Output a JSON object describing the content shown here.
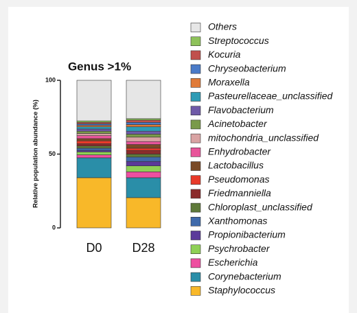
{
  "chart_data": {
    "type": "stacked_bar",
    "title": "Genus >1%",
    "y_label": "Relative population abundance (%)",
    "categories": [
      "D0",
      "D28"
    ],
    "ylim": [
      0,
      100
    ],
    "yticks": [
      0,
      50,
      100
    ],
    "series": [
      {
        "name": "Others",
        "color": "#e6e6e6",
        "values": [
          27.5,
          26
        ]
      },
      {
        "name": "Streptococcus",
        "color": "#8ec25a",
        "values": [
          1,
          1
        ]
      },
      {
        "name": "Kocuria",
        "color": "#c0504d",
        "values": [
          1,
          1.5
        ]
      },
      {
        "name": "Chryseobacterium",
        "color": "#4a7bc8",
        "values": [
          1,
          1.5
        ]
      },
      {
        "name": "Moraxella",
        "color": "#e07b39",
        "values": [
          1,
          1.5
        ]
      },
      {
        "name": "Pasteurellaceae_unclassified",
        "color": "#2e9bb5",
        "values": [
          1.5,
          3
        ]
      },
      {
        "name": "Flavobacterium",
        "color": "#6f5aa8",
        "values": [
          1.5,
          2
        ]
      },
      {
        "name": "Acinetobacter",
        "color": "#7a9a4a",
        "values": [
          1.5,
          2
        ]
      },
      {
        "name": "mitochondria_unclassified",
        "color": "#d9a3a3",
        "values": [
          1.5,
          3
        ]
      },
      {
        "name": "Enhydrobacter",
        "color": "#e8559a",
        "values": [
          2,
          2
        ]
      },
      {
        "name": "Lactobacillus",
        "color": "#7a4a26",
        "values": [
          1.5,
          2.5
        ]
      },
      {
        "name": "Pseudomonas",
        "color": "#e83a2a",
        "values": [
          2,
          1.5
        ]
      },
      {
        "name": "Friedmanniella",
        "color": "#8b2b2b",
        "values": [
          1.5,
          2.5
        ]
      },
      {
        "name": "Chloroplast_unclassified",
        "color": "#5f7a3a",
        "values": [
          1.5,
          2
        ]
      },
      {
        "name": "Xanthomonas",
        "color": "#3f6aaa",
        "values": [
          1.5,
          3
        ]
      },
      {
        "name": "Propionibacterium",
        "color": "#5b3a9a",
        "values": [
          1,
          3
        ]
      },
      {
        "name": "Psychrobacter",
        "color": "#8fd056",
        "values": [
          2,
          4
        ]
      },
      {
        "name": "Escherichia",
        "color": "#ee4fa0",
        "values": [
          2,
          4
        ]
      },
      {
        "name": "Corynebacterium",
        "color": "#2a8ea8",
        "values": [
          13.5,
          13.5
        ]
      },
      {
        "name": "Staphylococcus",
        "color": "#f8b829",
        "values": [
          34,
          20.5
        ]
      }
    ]
  }
}
